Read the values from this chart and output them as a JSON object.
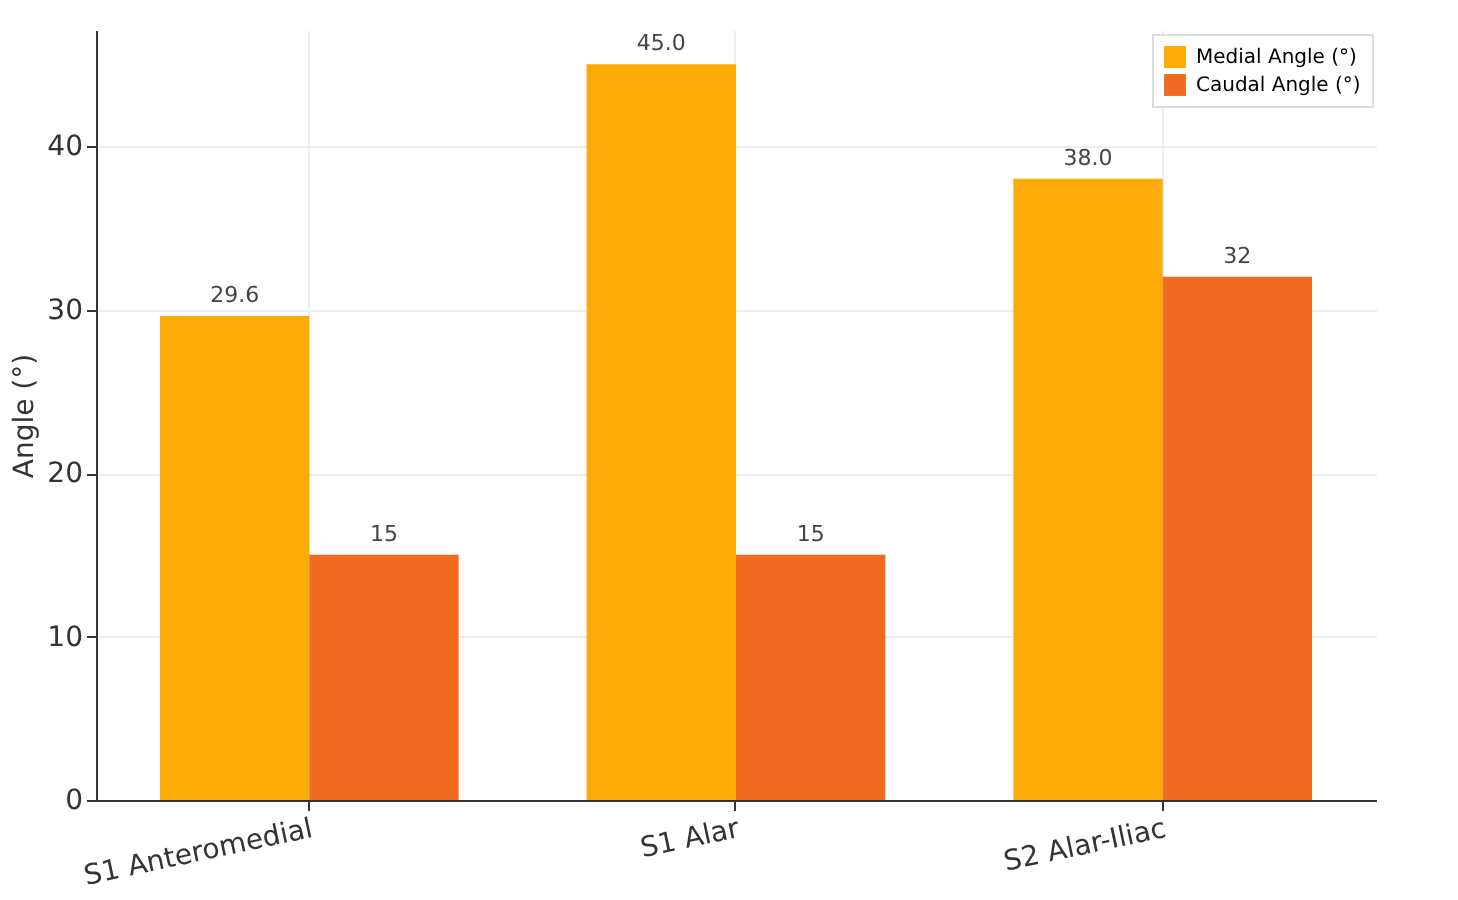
{
  "chart_data": {
    "type": "bar",
    "ylabel": "Angle (°)",
    "categories": [
      "S1 Anteromedial",
      "S1 Alar",
      "S2 Alar-Iliac"
    ],
    "series": [
      {
        "name": "Medial Angle (°)",
        "color": "#fcaa05",
        "values": [
          29.6,
          45.0,
          38.0
        ],
        "value_labels": [
          "29.6",
          "45.0",
          "38.0"
        ]
      },
      {
        "name": "Caudal Angle (°)",
        "color": "#f26a22",
        "values": [
          15,
          15,
          32
        ],
        "value_labels": [
          "15",
          "15",
          "32"
        ]
      }
    ],
    "ylim": [
      0,
      47.1
    ],
    "yticks": [
      0,
      10,
      20,
      30,
      40
    ],
    "grid": true,
    "legend": "top right"
  }
}
